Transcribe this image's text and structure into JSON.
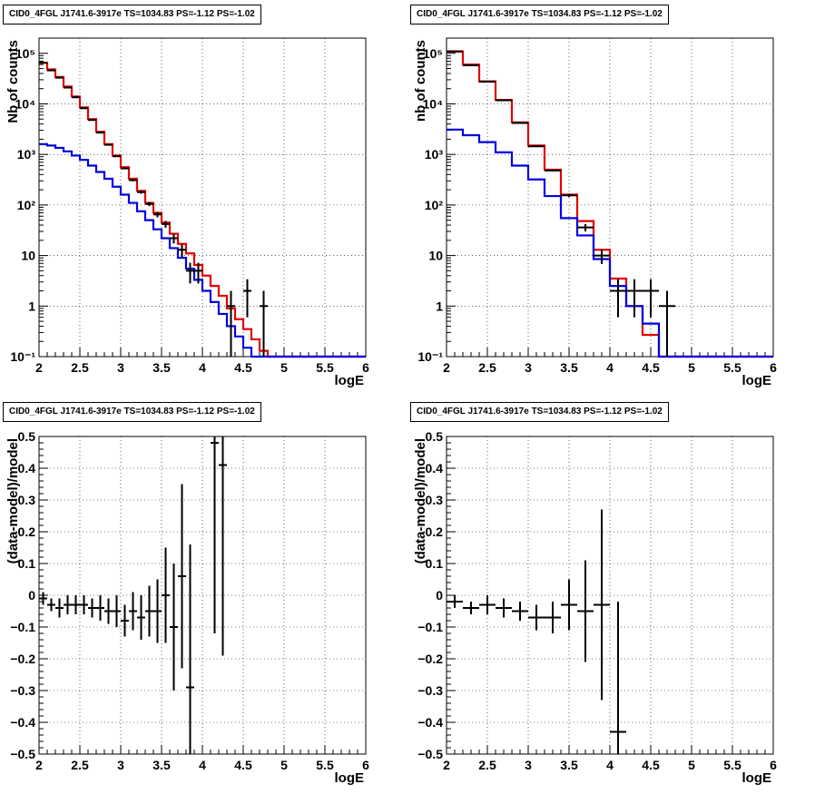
{
  "chart_data": [
    {
      "type": "histogram",
      "title": "CID0_4FGL J1741.6-3917e TS=1034.83 PS=-1.12 PS=-1.02",
      "xlabel": "logE",
      "ylabel": "Nb of counts",
      "xlim": [
        2,
        6
      ],
      "ylim": [
        0.1,
        200000
      ],
      "yscale": "log",
      "grid": true,
      "x_ticks": [
        "2",
        "2.5",
        "3",
        "3.5",
        "4",
        "4.5",
        "5",
        "5.5",
        "6"
      ],
      "y_ticks": [
        {
          "v": 0.1,
          "label": "10⁻¹"
        },
        {
          "v": 1,
          "label": "1"
        },
        {
          "v": 10,
          "label": "10"
        },
        {
          "v": 100,
          "label": "10²"
        },
        {
          "v": 1000,
          "label": "10³"
        },
        {
          "v": 10000,
          "label": "10⁴"
        },
        {
          "v": 100000,
          "label": "10⁵"
        }
      ],
      "bin_edges": [
        2.0,
        2.1,
        2.2,
        2.3,
        2.4,
        2.5,
        2.6,
        2.7,
        2.8,
        2.9,
        3.0,
        3.1,
        3.2,
        3.3,
        3.4,
        3.5,
        3.6,
        3.7,
        3.8,
        3.9,
        4.0,
        4.1,
        4.2,
        4.3,
        4.4,
        4.5,
        4.6,
        4.7,
        4.8,
        4.9,
        5.0,
        5.1,
        5.2,
        5.3,
        5.4,
        5.5,
        5.6,
        5.7,
        5.8,
        5.9,
        6.0
      ],
      "series": [
        {
          "color": "#e00000",
          "style": "step",
          "values": [
            65000,
            48000,
            34000,
            22000,
            14000,
            8500,
            5000,
            2800,
            1600,
            950,
            560,
            330,
            190,
            110,
            70,
            45,
            27,
            17,
            11,
            6.5,
            4.0,
            2.5,
            1.6,
            0.9,
            0.55,
            0.35,
            0.22,
            0.13,
            0.1,
            0.1,
            0.1,
            0.1,
            0.1,
            0.1,
            0.1,
            0.1,
            0.1,
            0.1,
            0.1,
            0.1
          ]
        },
        {
          "color": "#0000e0",
          "style": "step",
          "values": [
            1600,
            1500,
            1350,
            1150,
            950,
            780,
            600,
            450,
            330,
            230,
            160,
            110,
            75,
            50,
            33,
            22,
            14,
            9,
            5.5,
            3.3,
            2.0,
            1.2,
            0.7,
            0.4,
            0.25,
            0.15,
            0.1,
            0.1,
            0.1,
            0.1,
            0.1,
            0.1,
            0.1,
            0.1,
            0.1,
            0.1,
            0.1,
            0.1,
            0.1,
            0.1
          ]
        },
        {
          "color": "#000000",
          "style": "points",
          "x": [
            2.05,
            2.15,
            2.25,
            2.35,
            2.45,
            2.55,
            2.65,
            2.75,
            2.85,
            2.95,
            3.05,
            3.15,
            3.25,
            3.35,
            3.45,
            3.55,
            3.65,
            3.75,
            3.85,
            3.95,
            4.35,
            4.55,
            4.75
          ],
          "y": [
            65000,
            46000,
            33000,
            21000,
            13500,
            8200,
            4800,
            2700,
            1550,
            920,
            530,
            310,
            180,
            105,
            65,
            42,
            22,
            13,
            5,
            5,
            1,
            2,
            1
          ],
          "yerr_lo": [
            255,
            215,
            180,
            145,
            115,
            90,
            70,
            52,
            39,
            30,
            23,
            17,
            13,
            10,
            8,
            6.5,
            4.7,
            3.6,
            2.2,
            2.2,
            1,
            1.4,
            1
          ],
          "yerr_hi": [
            255,
            215,
            180,
            145,
            115,
            90,
            70,
            52,
            39,
            30,
            23,
            17,
            13,
            10,
            8,
            6.5,
            4.7,
            3.6,
            2.2,
            2.2,
            1,
            1.4,
            1
          ]
        }
      ]
    },
    {
      "type": "histogram",
      "title": "CID0_4FGL J1741.6-3917e TS=1034.83 PS=-1.12 PS=-1.02",
      "xlabel": "logE",
      "ylabel": "nb of counts",
      "xlim": [
        2,
        6
      ],
      "ylim": [
        0.1,
        200000
      ],
      "yscale": "log",
      "grid": true,
      "x_ticks": [
        "2",
        "2.5",
        "3",
        "3.5",
        "4",
        "4.5",
        "5",
        "5.5",
        "6"
      ],
      "y_ticks": [
        {
          "v": 0.1,
          "label": "10⁻¹"
        },
        {
          "v": 1,
          "label": "1"
        },
        {
          "v": 10,
          "label": "10"
        },
        {
          "v": 100,
          "label": "10²"
        },
        {
          "v": 1000,
          "label": "10³"
        },
        {
          "v": 10000,
          "label": "10⁴"
        },
        {
          "v": 100000,
          "label": "10⁵"
        }
      ],
      "bin_edges": [
        2.0,
        2.2,
        2.4,
        2.6,
        2.8,
        3.0,
        3.2,
        3.4,
        3.6,
        3.8,
        4.0,
        4.2,
        4.4,
        4.6,
        4.8,
        5.0,
        5.2,
        5.4,
        5.6,
        5.8,
        6.0
      ],
      "series": [
        {
          "color": "#e00000",
          "style": "step",
          "values": [
            110000,
            60000,
            28000,
            12000,
            4300,
            1500,
            500,
            160,
            48,
            13,
            3.5,
            1.0,
            0.27,
            0.1,
            0.1,
            0.1,
            0.1,
            0.1,
            0.1,
            0.1
          ]
        },
        {
          "color": "#0000e0",
          "style": "step",
          "values": [
            3100,
            2400,
            1750,
            1100,
            600,
            320,
            150,
            55,
            25,
            8.5,
            2.5,
            1.0,
            0.45,
            0.1,
            0.1,
            0.1,
            0.1,
            0.1,
            0.1,
            0.1
          ]
        },
        {
          "color": "#000000",
          "style": "points",
          "x": [
            2.1,
            2.3,
            2.5,
            2.7,
            2.9,
            3.1,
            3.3,
            3.5,
            3.7,
            3.9,
            4.1,
            4.3,
            4.5,
            4.7
          ],
          "y": [
            108000,
            58000,
            27500,
            11800,
            4200,
            1450,
            480,
            155,
            36,
            10,
            2,
            2,
            2,
            1
          ],
          "yerr_lo": [
            330,
            240,
            165,
            110,
            65,
            38,
            22,
            12,
            6,
            3.2,
            1.4,
            1.4,
            1.4,
            1
          ],
          "yerr_hi": [
            330,
            240,
            165,
            110,
            65,
            38,
            22,
            12,
            6,
            3.2,
            1.4,
            1.4,
            1.4,
            1
          ]
        }
      ]
    },
    {
      "type": "scatter",
      "title": "CID0_4FGL J1741.6-3917e TS=1034.83 PS=-1.12 PS=-1.02",
      "xlabel": "logE",
      "ylabel": "(data-model)/model",
      "xlim": [
        2,
        6
      ],
      "ylim": [
        -0.5,
        0.5
      ],
      "yscale": "linear",
      "grid": true,
      "x_ticks": [
        "2",
        "2.5",
        "3",
        "3.5",
        "4",
        "4.5",
        "5",
        "5.5",
        "6"
      ],
      "y_ticks": [
        {
          "v": -0.5,
          "label": "−0.5"
        },
        {
          "v": -0.4,
          "label": "−0.4"
        },
        {
          "v": -0.3,
          "label": "−0.3"
        },
        {
          "v": -0.2,
          "label": "−0.2"
        },
        {
          "v": -0.1,
          "label": "−0.1"
        },
        {
          "v": 0,
          "label": "0"
        },
        {
          "v": 0.1,
          "label": "0.1"
        },
        {
          "v": 0.2,
          "label": "0.2"
        },
        {
          "v": 0.3,
          "label": "0.3"
        },
        {
          "v": 0.4,
          "label": "0.4"
        },
        {
          "v": 0.5,
          "label": "0.5"
        }
      ],
      "series": [
        {
          "color": "#000000",
          "style": "points",
          "xhalf": 0.05,
          "x": [
            2.05,
            2.15,
            2.25,
            2.35,
            2.45,
            2.55,
            2.65,
            2.75,
            2.85,
            2.95,
            3.05,
            3.15,
            3.25,
            3.35,
            3.45,
            3.55,
            3.65,
            3.75,
            3.85,
            4.15,
            4.25
          ],
          "y": [
            -0.01,
            -0.03,
            -0.04,
            -0.03,
            -0.03,
            -0.03,
            -0.04,
            -0.04,
            -0.05,
            -0.05,
            -0.08,
            -0.05,
            -0.07,
            -0.05,
            -0.05,
            0.0,
            -0.1,
            0.06,
            -0.29,
            0.48,
            0.41
          ],
          "yerr": [
            0.02,
            0.02,
            0.03,
            0.03,
            0.03,
            0.03,
            0.03,
            0.04,
            0.04,
            0.05,
            0.05,
            0.06,
            0.07,
            0.08,
            0.1,
            0.15,
            0.2,
            0.29,
            0.45,
            0.6,
            0.6
          ]
        }
      ]
    },
    {
      "type": "scatter",
      "title": "CID0_4FGL J1741.6-3917e TS=1034.83 PS=-1.12 PS=-1.02",
      "xlabel": "logE",
      "ylabel": "(data-model)/model",
      "xlim": [
        2,
        6
      ],
      "ylim": [
        -0.5,
        0.5
      ],
      "yscale": "linear",
      "grid": true,
      "x_ticks": [
        "2",
        "2.5",
        "3",
        "3.5",
        "4",
        "4.5",
        "5",
        "5.5",
        "6"
      ],
      "y_ticks": [
        {
          "v": -0.5,
          "label": "−0.5"
        },
        {
          "v": -0.4,
          "label": "−0.4"
        },
        {
          "v": -0.3,
          "label": "−0.3"
        },
        {
          "v": -0.2,
          "label": "−0.2"
        },
        {
          "v": -0.1,
          "label": "−0.1"
        },
        {
          "v": 0,
          "label": "0"
        },
        {
          "v": 0.1,
          "label": "0.1"
        },
        {
          "v": 0.2,
          "label": "0.2"
        },
        {
          "v": 0.3,
          "label": "0.3"
        },
        {
          "v": 0.4,
          "label": "0.4"
        },
        {
          "v": 0.5,
          "label": "0.5"
        }
      ],
      "series": [
        {
          "color": "#000000",
          "style": "points",
          "xhalf": 0.1,
          "x": [
            2.1,
            2.3,
            2.5,
            2.7,
            2.9,
            3.1,
            3.3,
            3.5,
            3.7,
            3.9,
            4.1
          ],
          "y": [
            -0.02,
            -0.04,
            -0.03,
            -0.04,
            -0.05,
            -0.07,
            -0.07,
            -0.03,
            -0.05,
            -0.03,
            -0.43
          ],
          "yerr": [
            0.02,
            0.02,
            0.03,
            0.03,
            0.03,
            0.04,
            0.05,
            0.08,
            0.16,
            0.3,
            0.41
          ]
        }
      ]
    }
  ]
}
